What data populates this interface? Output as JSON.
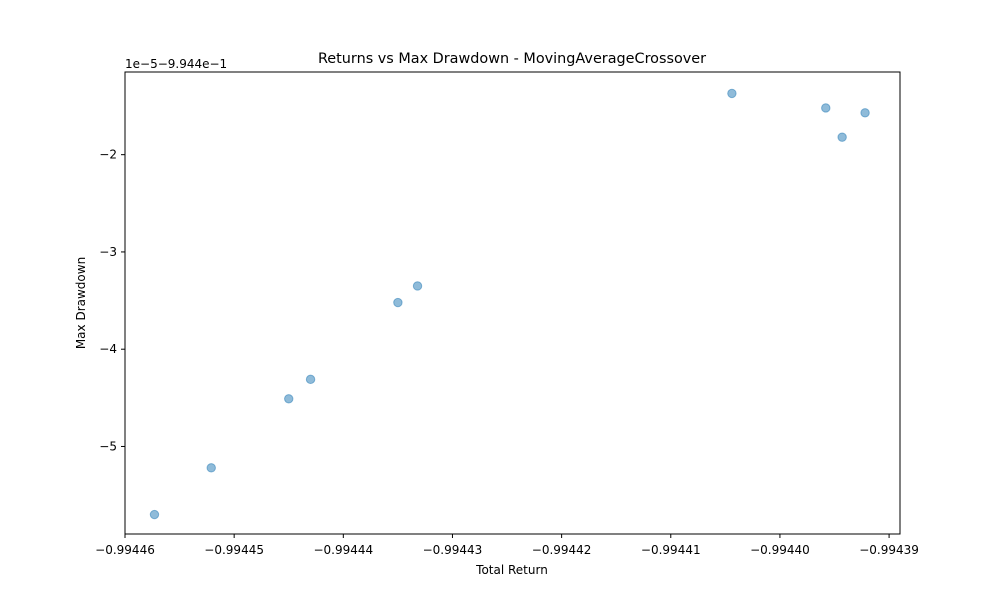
{
  "chart_data": {
    "type": "scatter",
    "title": "Returns vs Max Drawdown - MovingAverageCrossover",
    "xlabel": "Total Return",
    "ylabel": "Max Drawdown",
    "y_offset_label": "1e−5−9.944e−1",
    "xlim": [
      -0.99446,
      -0.994389
    ],
    "ylim": [
      -5.9,
      -1.15
    ],
    "x_ticks": [
      -0.99446,
      -0.99445,
      -0.99444,
      -0.99443,
      -0.99442,
      -0.99441,
      -0.9944,
      -0.99439
    ],
    "x_tick_labels": [
      "−0.99446",
      "−0.99445",
      "−0.99444",
      "−0.99443",
      "−0.99442",
      "−0.99441",
      "−0.99440",
      "−0.99439"
    ],
    "y_ticks": [
      -2,
      -3,
      -4,
      -5
    ],
    "y_tick_labels": [
      "−2",
      "−3",
      "−4",
      "−5"
    ],
    "grid": false,
    "point_color": "#1f77b4",
    "point_alpha": 0.5,
    "points": [
      {
        "x": -0.9944573,
        "y": -5.7
      },
      {
        "x": -0.9944521,
        "y": -5.22
      },
      {
        "x": -0.994445,
        "y": -4.51
      },
      {
        "x": -0.994443,
        "y": -4.31
      },
      {
        "x": -0.994435,
        "y": -3.52
      },
      {
        "x": -0.9944332,
        "y": -3.35
      },
      {
        "x": -0.9944044,
        "y": -1.37
      },
      {
        "x": -0.9943958,
        "y": -1.52
      },
      {
        "x": -0.9943943,
        "y": -1.82
      },
      {
        "x": -0.9943922,
        "y": -1.57
      }
    ]
  }
}
